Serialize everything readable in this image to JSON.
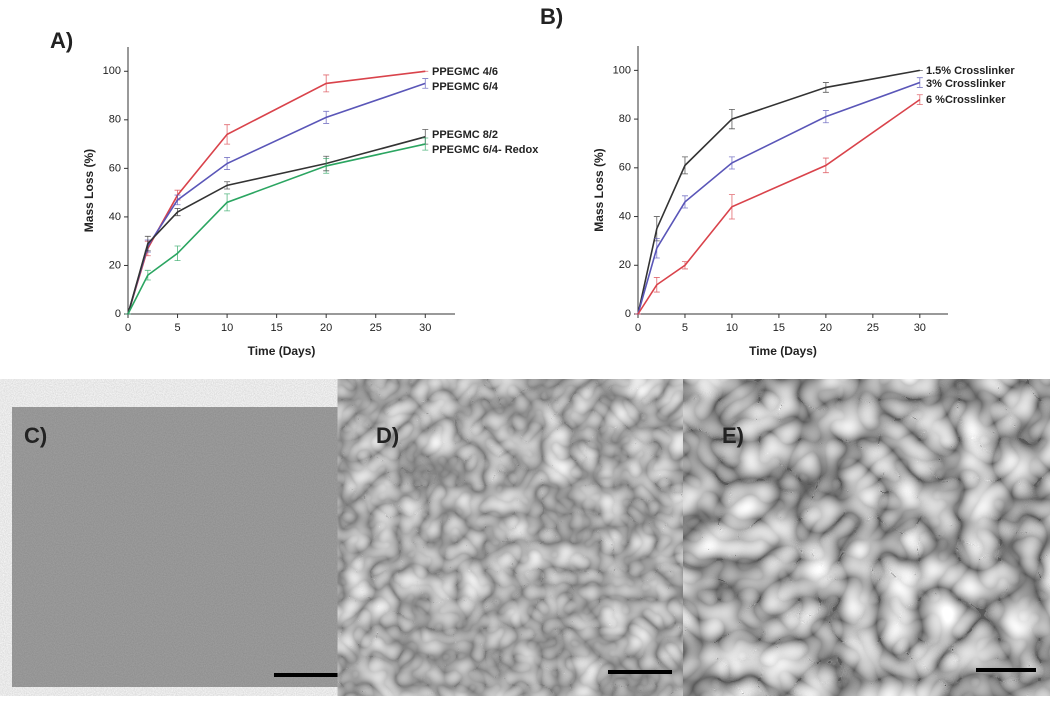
{
  "chart_data": [
    {
      "type": "line",
      "panel_label": "A)",
      "xlabel": "Time (Days)",
      "ylabel": "Mass Loss (%)",
      "x": [
        0,
        2,
        5,
        10,
        20,
        30
      ],
      "xlim": [
        0,
        33
      ],
      "xticks": [
        0,
        5,
        10,
        15,
        20,
        25,
        30
      ],
      "ylim": [
        0,
        110
      ],
      "yticks": [
        0,
        20,
        40,
        60,
        80,
        100
      ],
      "series": [
        {
          "name": "PPEGMC 4/6",
          "color": "#d9434b",
          "values": [
            0,
            27,
            49,
            74,
            95,
            100
          ],
          "errors": [
            0,
            3,
            2,
            4,
            3.5,
            0
          ]
        },
        {
          "name": "PPEGMC 6/4",
          "color": "#5a56b8",
          "values": [
            0,
            28,
            47,
            62,
            81,
            95
          ],
          "errors": [
            0,
            2.5,
            2,
            2.5,
            2.5,
            2
          ]
        },
        {
          "name": "PPEGMC 8/2",
          "color": "#333333",
          "values": [
            0,
            29,
            42,
            53,
            62,
            73
          ],
          "errors": [
            0,
            3,
            1.5,
            1.5,
            3,
            3
          ]
        },
        {
          "name": "PPEGMC 6/4- Redox",
          "color": "#2ba561",
          "values": [
            0,
            16,
            25,
            46,
            61,
            70
          ],
          "errors": [
            0,
            2,
            3,
            3.5,
            3,
            2.5
          ]
        }
      ]
    },
    {
      "type": "line",
      "panel_label": "B)",
      "xlabel": "Time (Days)",
      "ylabel": "Mass Loss (%)",
      "x": [
        0,
        2,
        5,
        10,
        20,
        30
      ],
      "xlim": [
        0,
        33
      ],
      "xticks": [
        0,
        5,
        10,
        15,
        20,
        25,
        30
      ],
      "ylim": [
        0,
        110
      ],
      "yticks": [
        0,
        20,
        40,
        60,
        80,
        100
      ],
      "series": [
        {
          "name": "1.5% Crosslinker",
          "color": "#333333",
          "values": [
            0,
            35,
            61,
            80,
            93,
            100
          ],
          "errors": [
            0,
            5,
            3.5,
            4,
            2,
            0
          ]
        },
        {
          "name": "3% Crosslinker",
          "color": "#5a56b8",
          "values": [
            0,
            27,
            46,
            62,
            81,
            95
          ],
          "errors": [
            0,
            4,
            2.5,
            2.5,
            2.5,
            2
          ]
        },
        {
          "name": "6 %Crosslinker",
          "color": "#d9434b",
          "values": [
            0,
            12,
            20,
            44,
            61,
            88
          ],
          "errors": [
            0,
            3,
            1.5,
            5,
            3,
            2
          ]
        }
      ]
    }
  ],
  "images": [
    {
      "label": "C)"
    },
    {
      "label": "D)"
    },
    {
      "label": "E)"
    }
  ]
}
